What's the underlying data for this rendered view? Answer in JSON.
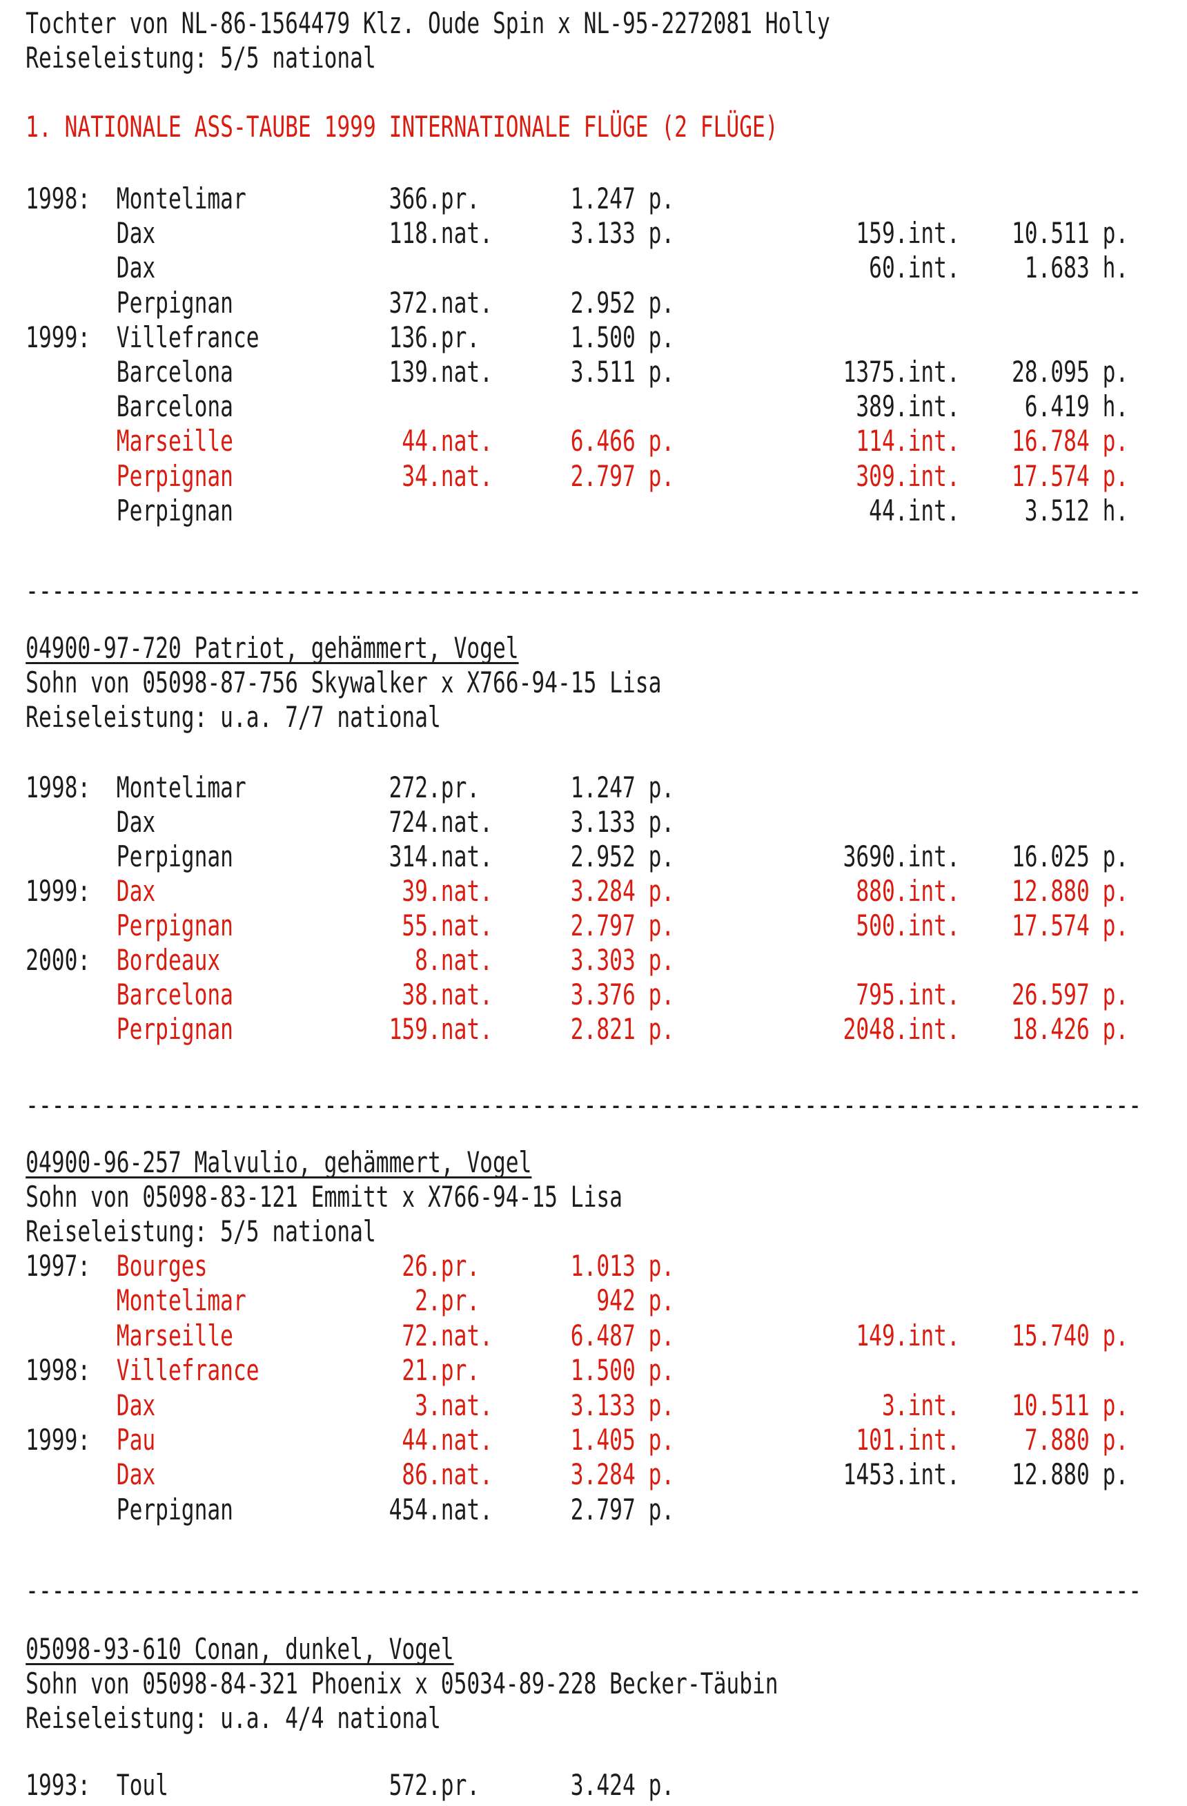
{
  "page": {
    "background": "#ffffff",
    "text_color": "#1c1c1c",
    "accent_red": "#da1c10"
  },
  "separator": "--------------------------------------------------------------------------------------",
  "intro": {
    "daughter_line": "Tochter von NL-86-1564479 Klz. Oude Spin x NL-95-2272081 Holly",
    "performance_line": "Reiseleistung: 5/5 national",
    "heading": "1. NATIONALE ASS-TAUBE 1999 INTERNATIONALE FLÜGE (2 FLÜGE)"
  },
  "sections": [
    {
      "rows": [
        {
          "year": "1998:",
          "city": "Montelimar",
          "nat": "366",
          "nat_s": ".pr.",
          "pts": "1.247",
          "pts_s": "p.",
          "color": "black"
        },
        {
          "year": "",
          "city": "Dax",
          "nat": "118",
          "nat_s": ".nat.",
          "pts": "3.133",
          "pts_s": "p.",
          "int": "159",
          "int_s": ".int.",
          "ipts": "10.511",
          "ipts_s": "p.",
          "color": "black"
        },
        {
          "year": "",
          "city": "Dax",
          "int": "60",
          "int_s": ".int.",
          "ipts": "1.683",
          "ipts_s": "h.",
          "color": "black"
        },
        {
          "year": "",
          "city": "Perpignan",
          "nat": "372",
          "nat_s": ".nat.",
          "pts": "2.952",
          "pts_s": "p.",
          "color": "black"
        },
        {
          "year": "1999:",
          "city": "Villefrance",
          "nat": "136",
          "nat_s": ".pr.",
          "pts": "1.500",
          "pts_s": "p.",
          "color": "black"
        },
        {
          "year": "",
          "city": "Barcelona",
          "nat": "139",
          "nat_s": ".nat.",
          "pts": "3.511",
          "pts_s": "p.",
          "int": "1375",
          "int_s": ".int.",
          "ipts": "28.095",
          "ipts_s": "p.",
          "color": "black"
        },
        {
          "year": "",
          "city": "Barcelona",
          "int": "389",
          "int_s": ".int.",
          "ipts": "6.419",
          "ipts_s": "h.",
          "color": "black"
        },
        {
          "year": "",
          "city": "Marseille",
          "nat": "44",
          "nat_s": ".nat.",
          "pts": "6.466",
          "pts_s": "p.",
          "int": "114",
          "int_s": ".int.",
          "ipts": "16.784",
          "ipts_s": "p.",
          "color": "red"
        },
        {
          "year": "",
          "city": "Perpignan",
          "nat": "34",
          "nat_s": ".nat.",
          "pts": "2.797",
          "pts_s": "p.",
          "int": "309",
          "int_s": ".int.",
          "ipts": "17.574",
          "ipts_s": "p.",
          "color": "red"
        },
        {
          "year": "",
          "city": "Perpignan",
          "int": "44",
          "int_s": ".int.",
          "ipts": "3.512",
          "ipts_s": "h.",
          "color": "black"
        }
      ]
    },
    {
      "title": "04900-97-720 Patriot, gehämmert, Vogel",
      "pedigree": "Sohn von 05098-87-756 Skywalker x X766-94-15 Lisa",
      "performance": "Reiseleistung: u.a. 7/7 national",
      "rows": [
        {
          "year": "1998:",
          "city": "Montelimar",
          "nat": "272",
          "nat_s": ".pr.",
          "pts": "1.247",
          "pts_s": "p.",
          "color": "black"
        },
        {
          "year": "",
          "city": "Dax",
          "nat": "724",
          "nat_s": ".nat.",
          "pts": "3.133",
          "pts_s": "p.",
          "color": "black"
        },
        {
          "year": "",
          "city": "Perpignan",
          "nat": "314",
          "nat_s": ".nat.",
          "pts": "2.952",
          "pts_s": "p.",
          "int": "3690",
          "int_s": ".int.",
          "ipts": "16.025",
          "ipts_s": "p.",
          "color": "black"
        },
        {
          "year": "1999:",
          "city": "Dax",
          "nat": "39",
          "nat_s": ".nat.",
          "pts": "3.284",
          "pts_s": "p.",
          "int": "880",
          "int_s": ".int.",
          "ipts": "12.880",
          "ipts_s": "p.",
          "color": "red"
        },
        {
          "year": "",
          "city": "Perpignan",
          "nat": "55",
          "nat_s": ".nat.",
          "pts": "2.797",
          "pts_s": "p.",
          "int": "500",
          "int_s": ".int.",
          "ipts": "17.574",
          "ipts_s": "p.",
          "color": "red"
        },
        {
          "year": "2000:",
          "city": "Bordeaux",
          "nat": "8",
          "nat_s": ".nat.",
          "pts": "3.303",
          "pts_s": "p.",
          "color": "red"
        },
        {
          "year": "",
          "city": "Barcelona",
          "nat": "38",
          "nat_s": ".nat.",
          "pts": "3.376",
          "pts_s": "p.",
          "int": "795",
          "int_s": ".int.",
          "ipts": "26.597",
          "ipts_s": "p.",
          "color": "red"
        },
        {
          "year": "",
          "city": "Perpignan",
          "nat": "159",
          "nat_s": ".nat.",
          "pts": "2.821",
          "pts_s": "p.",
          "int": "2048",
          "int_s": ".int.",
          "ipts": "18.426",
          "ipts_s": "p.",
          "color": "red"
        }
      ]
    },
    {
      "title": "04900-96-257 Malvulio, gehämmert, Vogel",
      "pedigree": "Sohn von 05098-83-121 Emmitt x X766-94-15 Lisa",
      "performance": "Reiseleistung: 5/5 national",
      "rows": [
        {
          "year": "1997:",
          "city": "Bourges",
          "nat": "26",
          "nat_s": ".pr.",
          "pts": "1.013",
          "pts_s": "p.",
          "color": "red"
        },
        {
          "year": "",
          "city": "Montelimar",
          "nat": "2",
          "nat_s": ".pr.",
          "pts": "942",
          "pts_s": "p.",
          "color": "red"
        },
        {
          "year": "",
          "city": "Marseille",
          "nat": "72",
          "nat_s": ".nat.",
          "pts": "6.487",
          "pts_s": "p.",
          "int": "149",
          "int_s": ".int.",
          "ipts": "15.740",
          "ipts_s": "p.",
          "color": "red"
        },
        {
          "year": "1998:",
          "city": "Villefrance",
          "nat": "21",
          "nat_s": ".pr.",
          "pts": "1.500",
          "pts_s": "p.",
          "color": "red"
        },
        {
          "year": "",
          "city": "Dax",
          "nat": "3",
          "nat_s": ".nat.",
          "pts": "3.133",
          "pts_s": "p.",
          "int": "3",
          "int_s": ".int.",
          "ipts": "10.511",
          "ipts_s": "p.",
          "color": "red"
        },
        {
          "year": "1999:",
          "city": "Pau",
          "nat": "44",
          "nat_s": ".nat.",
          "pts": "1.405",
          "pts_s": "p.",
          "int": "101",
          "int_s": ".int.",
          "ipts": "7.880",
          "ipts_s": "p.",
          "color": "red"
        },
        {
          "year": "",
          "city": "Dax",
          "nat": "86",
          "nat_s": ".nat.",
          "pts": "3.284",
          "pts_s": "p.",
          "int": "1453",
          "int_s": ".int.",
          "ipts": "12.880",
          "ipts_s": "p.",
          "color": "red",
          "int_color": "black"
        },
        {
          "year": "",
          "city": "Perpignan",
          "nat": "454",
          "nat_s": ".nat.",
          "pts": "2.797",
          "pts_s": "p.",
          "color": "black"
        }
      ]
    },
    {
      "title": "05098-93-610 Conan, dunkel, Vogel",
      "pedigree": "Sohn von 05098-84-321 Phoenix x 05034-89-228 Becker-Täubin",
      "performance": "Reiseleistung: u.a. 4/4 national",
      "rows": [
        {
          "year": "1993:",
          "city": "Toul",
          "nat": "572",
          "nat_s": ".pr.",
          "pts": "3.424",
          "pts_s": "p.",
          "color": "black"
        }
      ]
    }
  ]
}
